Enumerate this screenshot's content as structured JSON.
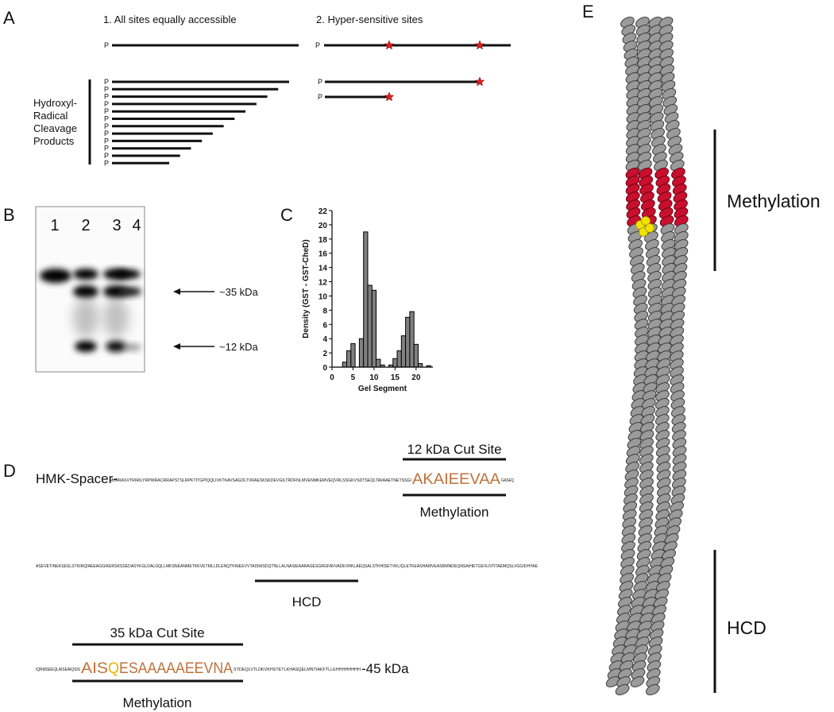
{
  "panels": {
    "a": {
      "letter": "A",
      "heading_1": "1. All sites equally accessible",
      "heading_2": "2. Hyper-sensitive sites",
      "top_left_p": "P",
      "top_right_p": "P",
      "right_p_labels": [
        "P",
        "P"
      ],
      "left_p_labels": [
        "P",
        "P",
        "P",
        "P",
        "P",
        "P",
        "P",
        "P",
        "P",
        "P",
        "P",
        "P"
      ],
      "products_label": [
        "Hydroxyl-",
        "Radical",
        "Cleavage",
        "Products"
      ]
    },
    "b": {
      "letter": "B",
      "lanes": [
        "1",
        "2",
        "3",
        "4"
      ],
      "marker_35": "~35 kDa",
      "marker_12": "~12 kDa"
    },
    "c": {
      "letter": "C"
    },
    "d": {
      "letter": "D",
      "line_1": {
        "prefix": "HMK-Spacer-",
        "seq_a": "MLRRASVTRIRILYRPWRACRRAPSTSLRPKTITGPIQQLIVKTKAVSAGDLTVRAESKSKDEVGILTRDFNLMVENMKEMVEQVRLSSGKVSDTSEQLTAVAAETNETSSGI",
        "site": "AKAIEEVAA",
        "seq_b": "GASEQ",
        "cut_label": "12 kDa Cut Site",
        "region_label": "Methylation"
      },
      "line_2": {
        "seq": "ASEVETINEKSESLSTKIRQIAEEAGGIKERSKSSEDASYKGLDALGQLLMKSNEANMETKKVETMLLDLENQTKNIEEVVTAISNISDQTNLLALNASIEAARAGESGRGFAVVADEVRKLAEQSALSTKHISETVKLIQLETKEASHAMVEASRMNDEQNSAIHETGEVLNTITAEMQSLVGGIDHYAE",
        "region_label": "HCD"
      },
      "line_3": {
        "seq_a": "IQRMSEEQLAISEAIQSIS",
        "site_a": "AIS",
        "site_q": "Q",
        "site_b": "ESAAAAAEEVNA",
        "seq_b": "STDEQLVTLDKVKHSTETLKHASQELMNTIAKFTLLEHHHHHHHH",
        "suffix": "-45 kDa",
        "cut_label": "35 kDa Cut Site",
        "region_label": "Methylation"
      }
    },
    "e": {
      "letter": "E",
      "methylation": "Methylation",
      "hcd": "HCD"
    }
  },
  "chart_data": {
    "type": "bar",
    "xlabel": "Gel Segment",
    "ylabel": "Density (GST - GST-CheD)",
    "x": [
      3,
      4,
      5,
      7,
      8,
      9,
      10,
      11,
      12,
      14,
      15,
      16,
      17,
      18,
      19,
      20,
      21,
      23
    ],
    "values": [
      0.7,
      2.3,
      3.3,
      4.0,
      19.0,
      11.5,
      10.8,
      1.1,
      0.3,
      0.3,
      1.2,
      2.3,
      4.4,
      7.0,
      7.8,
      3.2,
      0.5,
      0.2
    ],
    "color": "#808080",
    "xlim": [
      0,
      24
    ],
    "xticks": [
      0,
      5,
      10,
      15,
      20
    ],
    "ylim": [
      0,
      22
    ],
    "yticks": [
      0,
      2,
      4,
      6,
      8,
      10,
      12,
      14,
      16,
      18,
      20,
      22
    ]
  }
}
